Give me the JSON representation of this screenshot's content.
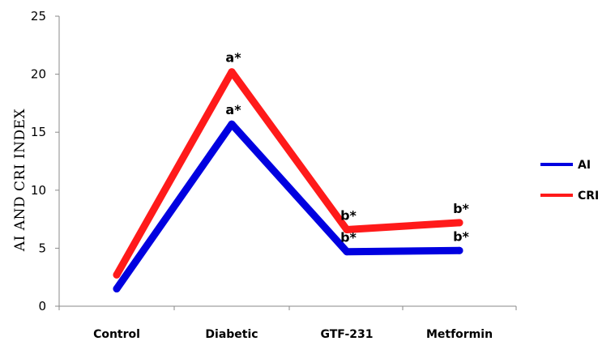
{
  "chart_data": {
    "type": "line",
    "categories": [
      "Control",
      "Diabetic",
      "GTF-231",
      "Metformin"
    ],
    "series": [
      {
        "name": "AI",
        "values": [
          1.5,
          15.7,
          4.7,
          4.8
        ],
        "color": "#0000e0",
        "annotations": [
          "",
          "a*",
          "b*",
          "b*"
        ]
      },
      {
        "name": "CRI",
        "values": [
          2.7,
          20.2,
          6.6,
          7.2
        ],
        "color": "#ff1a1a",
        "annotations": [
          "",
          "a*",
          "b*",
          "b*"
        ]
      }
    ],
    "title": "",
    "xlabel": "",
    "ylabel": "AI AND CRI INDEX",
    "ylim": [
      0,
      25
    ],
    "yticks": [
      0,
      5,
      10,
      15,
      20,
      25
    ],
    "grid": false,
    "legend_position": "right"
  }
}
